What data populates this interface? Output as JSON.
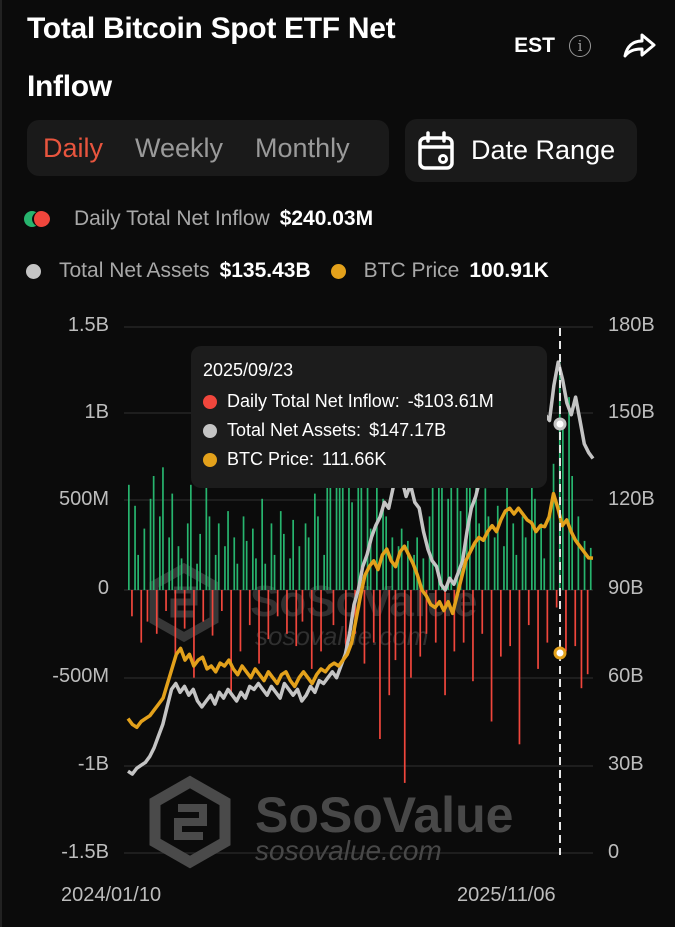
{
  "header": {
    "title": "Total Bitcoin Spot ETF Net Inflow",
    "timezone": "EST",
    "info_icon": "info-icon",
    "share_icon": "share-icon"
  },
  "tabs": [
    {
      "label": "Daily",
      "active": true
    },
    {
      "label": "Weekly",
      "active": false
    },
    {
      "label": "Monthly",
      "active": false
    }
  ],
  "date_range": {
    "label": "Date Range",
    "icon": "calendar-icon"
  },
  "legend": {
    "inflow": {
      "label": "Daily Total Net Inflow",
      "value": "$240.03M"
    },
    "assets": {
      "label": "Total Net Assets",
      "value": "$135.43B"
    },
    "price": {
      "label": "BTC Price",
      "value": "100.91K"
    }
  },
  "colors": {
    "positive": "#27b46e",
    "negative": "#f0463c",
    "assets": "#c4c4c4",
    "price": "#e3a11b",
    "active_tab": "#e8553e",
    "background": "#0b0b0b",
    "panel": "#1a1a1a"
  },
  "tooltip": {
    "date": "2025/09/23",
    "rows": [
      {
        "label": "Daily Total Net Inflow:",
        "value": "-$103.61M",
        "color": "#f0463c"
      },
      {
        "label": "Total Net Assets:",
        "value": "$147.17B",
        "color": "#c4c4c4"
      },
      {
        "label": "BTC Price:",
        "value": "111.66K",
        "color": "#e3a11b"
      }
    ]
  },
  "watermark": {
    "brand": "SoSoValue",
    "url": "sosovalue.com"
  },
  "chart_data": {
    "type": "bar+line",
    "title": "Total Bitcoin Spot ETF Net Inflow",
    "x_range": [
      "2024/01/10",
      "2025/11/06"
    ],
    "x_tick_labels": [
      "2024/01/10",
      "2025/11/06"
    ],
    "left_axis": {
      "label": "Daily Total Net Inflow",
      "ticks": [
        "1.5B",
        "1B",
        "500M",
        "0",
        "-500M",
        "-1B",
        "-1.5B"
      ],
      "range": [
        -1500000000,
        1500000000
      ]
    },
    "right_axis": {
      "label": "Total Net Assets",
      "ticks": [
        "180B",
        "150B",
        "120B",
        "90B",
        "60B",
        "30B",
        "0"
      ],
      "range": [
        0,
        180000000000
      ]
    },
    "grid": true,
    "crosshair_date": "2025/09/23",
    "series": [
      {
        "name": "Daily Total Net Inflow",
        "type": "bar",
        "unit": "USD millions (approx., sampled)",
        "values": [
          600,
          -150,
          480,
          200,
          -300,
          350,
          -180,
          520,
          650,
          -250,
          420,
          700,
          -120,
          300,
          550,
          -400,
          250,
          180,
          -220,
          380,
          600,
          -500,
          150,
          320,
          -180,
          700,
          420,
          -260,
          200,
          380,
          -120,
          250,
          450,
          -600,
          300,
          150,
          -350,
          420,
          280,
          -200,
          350,
          180,
          -420,
          520,
          150,
          -280,
          380,
          200,
          -150,
          450,
          320,
          -250,
          180,
          400,
          -320,
          250,
          -180,
          380,
          300,
          -450,
          550,
          420,
          -350,
          200,
          680,
          800,
          -200,
          900,
          1000,
          620,
          -380,
          750,
          500,
          -250,
          900,
          650,
          -420,
          780,
          350,
          -300,
          600,
          -850,
          520,
          420,
          -600,
          300,
          -400,
          250,
          350,
          -1100,
          280,
          -500,
          200,
          300,
          -380,
          180,
          -250,
          420,
          880,
          -300,
          950,
          700,
          -600,
          520,
          820,
          -350,
          600,
          450,
          -300,
          780,
          650,
          -520,
          720,
          380,
          -250,
          580,
          420,
          -750,
          300,
          480,
          -380,
          250,
          600,
          -320,
          380,
          200,
          -880,
          420,
          300,
          -200,
          620,
          520,
          -450,
          380,
          180,
          -300,
          480,
          720,
          -100,
          1300,
          950,
          -350,
          1100,
          650,
          -320,
          420,
          -560,
          280,
          -480,
          240
        ]
      },
      {
        "name": "Total Net Assets",
        "type": "line",
        "unit": "USD billions",
        "values": [
          28,
          27,
          29,
          30,
          31,
          33,
          36,
          40,
          44,
          50,
          56,
          58,
          55,
          57,
          54,
          56,
          52,
          50,
          52,
          54,
          51,
          55,
          53,
          56,
          54,
          52,
          55,
          53,
          57,
          56,
          58,
          56,
          54,
          57,
          55,
          53,
          58,
          56,
          54,
          56,
          52,
          54,
          57,
          55,
          59,
          58,
          60,
          62,
          60,
          64,
          68,
          75,
          85,
          90,
          98,
          102,
          108,
          112,
          115,
          120,
          118,
          125,
          130,
          128,
          122,
          126,
          120,
          118,
          110,
          104,
          100,
          98,
          92,
          90,
          94,
          92,
          96,
          100,
          110,
          118,
          122,
          128,
          132,
          134,
          136,
          130,
          128,
          134,
          138,
          140,
          136,
          142,
          138,
          140,
          142,
          147,
          150,
          148,
          160,
          168,
          162,
          154,
          150,
          156,
          148,
          140,
          137,
          135
        ]
      },
      {
        "name": "BTC Price",
        "type": "line",
        "unit": "USD thousands",
        "values": [
          46,
          44,
          43,
          45,
          46,
          47,
          49,
          51,
          53,
          58,
          63,
          68,
          70,
          66,
          68,
          64,
          66,
          67,
          63,
          64,
          62,
          65,
          64,
          66,
          63,
          61,
          64,
          62,
          60,
          63,
          61,
          59,
          62,
          60,
          58,
          61,
          62,
          59,
          57,
          60,
          62,
          60,
          58,
          61,
          63,
          62,
          64,
          65,
          64,
          66,
          68,
          72,
          80,
          88,
          95,
          98,
          100,
          97,
          102,
          104,
          100,
          98,
          103,
          105,
          102,
          99,
          95,
          90,
          88,
          85,
          84,
          86,
          83,
          86,
          82,
          88,
          94,
          100,
          103,
          106,
          108,
          107,
          110,
          112,
          110,
          114,
          117,
          118,
          116,
          118,
          116,
          114,
          113,
          110,
          112,
          111.66,
          115,
          123,
          118,
          112,
          114,
          110,
          107,
          105,
          103,
          101,
          100.91
        ]
      }
    ]
  }
}
